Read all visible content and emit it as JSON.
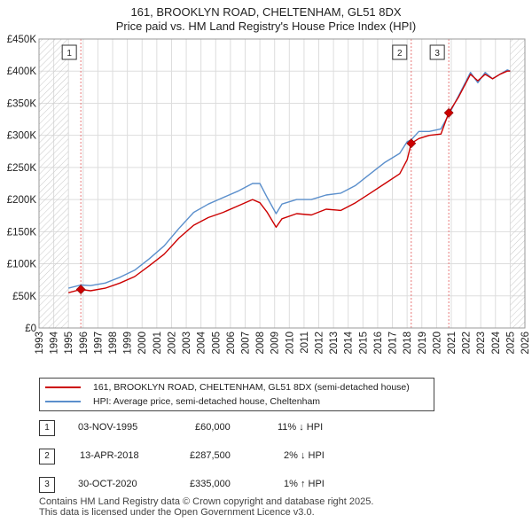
{
  "title_line1": "161, BROOKLYN ROAD, CHELTENHAM, GL51 8DX",
  "title_line2": "Price paid vs. HM Land Registry's House Price Index (HPI)",
  "legend": {
    "property": "161, BROOKLYN ROAD, CHELTENHAM, GL51 8DX (semi-detached house)",
    "hpi": "HPI: Average price, semi-detached house, Cheltenham"
  },
  "colors": {
    "property": "#cc0000",
    "hpi": "#5b8fcc",
    "grid": "#dddddd",
    "band": "#e8eef8",
    "marker_line": "#e87878"
  },
  "transactions": [
    {
      "num": "1",
      "date": "03-NOV-1995",
      "price": "£60,000",
      "hpi": "11% ↓ HPI"
    },
    {
      "num": "2",
      "date": "13-APR-2018",
      "price": "£287,500",
      "hpi": "2% ↓ HPI"
    },
    {
      "num": "3",
      "date": "30-OCT-2020",
      "price": "£335,000",
      "hpi": "1% ↑ HPI"
    }
  ],
  "footer": {
    "line1": "Contains HM Land Registry data © Crown copyright and database right 2025.",
    "line2": "This data is licensed under the Open Government Licence v3.0."
  },
  "chart_data": {
    "type": "line",
    "title": "161, BROOKLYN ROAD, CHELTENHAM, GL51 8DX — Price paid vs. HM Land Registry's House Price Index (HPI)",
    "xlabel": "",
    "ylabel": "",
    "xlim": [
      1993,
      2026
    ],
    "ylim": [
      0,
      450000
    ],
    "x_ticks": [
      "1993",
      "1994",
      "1995",
      "1996",
      "1997",
      "1998",
      "1999",
      "2000",
      "2001",
      "2002",
      "2003",
      "2004",
      "2005",
      "2006",
      "2007",
      "2008",
      "2009",
      "2010",
      "2011",
      "2012",
      "2013",
      "2014",
      "2015",
      "2016",
      "2017",
      "2018",
      "2019",
      "2020",
      "2021",
      "2022",
      "2023",
      "2024",
      "2025",
      "2026"
    ],
    "y_ticks": [
      {
        "value": 0,
        "label": "£0"
      },
      {
        "value": 50000,
        "label": "£50K"
      },
      {
        "value": 100000,
        "label": "£100K"
      },
      {
        "value": 150000,
        "label": "£150K"
      },
      {
        "value": 200000,
        "label": "£200K"
      },
      {
        "value": 250000,
        "label": "£250K"
      },
      {
        "value": 300000,
        "label": "£300K"
      },
      {
        "value": 350000,
        "label": "£350K"
      },
      {
        "value": 400000,
        "label": "£400K"
      },
      {
        "value": 450000,
        "label": "£450K"
      }
    ],
    "shaded_ranges": [
      [
        1993,
        1995.0
      ],
      [
        2025.0,
        2026
      ]
    ],
    "series": [
      {
        "name": "161, BROOKLYN ROAD, CHELTENHAM, GL51 8DX (semi-detached house)",
        "x": [
          1995.0,
          1995.84,
          1996.5,
          1997.5,
          1998.5,
          1999.5,
          2000.5,
          2001.5,
          2002.5,
          2003.5,
          2004.5,
          2005.5,
          2006.5,
          2007.5,
          2008.0,
          2008.5,
          2009.1,
          2009.5,
          2010.5,
          2011.5,
          2012.5,
          2013.5,
          2014.5,
          2015.5,
          2016.5,
          2017.5,
          2018.0,
          2018.28,
          2018.8,
          2019.5,
          2020.3,
          2020.83,
          2021.5,
          2022.3,
          2022.8,
          2023.3,
          2023.8,
          2024.3,
          2024.8,
          2025.0
        ],
        "values": [
          55000,
          60000,
          58000,
          62000,
          70000,
          80000,
          97000,
          115000,
          140000,
          160000,
          172000,
          180000,
          190000,
          200000,
          195000,
          180000,
          157000,
          170000,
          178000,
          176000,
          185000,
          183000,
          195000,
          210000,
          225000,
          240000,
          262000,
          287500,
          295000,
          300000,
          302000,
          335000,
          360000,
          395000,
          385000,
          395000,
          388000,
          395000,
          400000,
          400000
        ]
      },
      {
        "name": "HPI: Average price, semi-detached house, Cheltenham",
        "x": [
          1995.0,
          1995.84,
          1996.5,
          1997.5,
          1998.5,
          1999.5,
          2000.5,
          2001.5,
          2002.5,
          2003.5,
          2004.5,
          2005.5,
          2006.5,
          2007.5,
          2008.0,
          2008.5,
          2009.1,
          2009.5,
          2010.5,
          2011.5,
          2012.5,
          2013.5,
          2014.5,
          2015.5,
          2016.5,
          2017.5,
          2018.0,
          2018.28,
          2018.8,
          2019.5,
          2020.3,
          2020.83,
          2021.5,
          2022.3,
          2022.8,
          2023.3,
          2023.8,
          2024.3,
          2024.8,
          2025.0
        ],
        "values": [
          62000,
          67000,
          66000,
          70000,
          79000,
          90000,
          108000,
          128000,
          155000,
          180000,
          193000,
          203000,
          213000,
          225000,
          225000,
          203000,
          178000,
          193000,
          200000,
          200000,
          207000,
          210000,
          222000,
          240000,
          258000,
          272000,
          290000,
          293000,
          306000,
          306000,
          310000,
          332000,
          362000,
          398000,
          382000,
          398000,
          388000,
          395000,
          402000,
          400000
        ]
      }
    ],
    "markers": [
      {
        "label": "1",
        "x": 1995.84,
        "value": 60000
      },
      {
        "label": "2",
        "x": 2018.28,
        "value": 287500
      },
      {
        "label": "3",
        "x": 2020.83,
        "value": 335000
      }
    ]
  }
}
